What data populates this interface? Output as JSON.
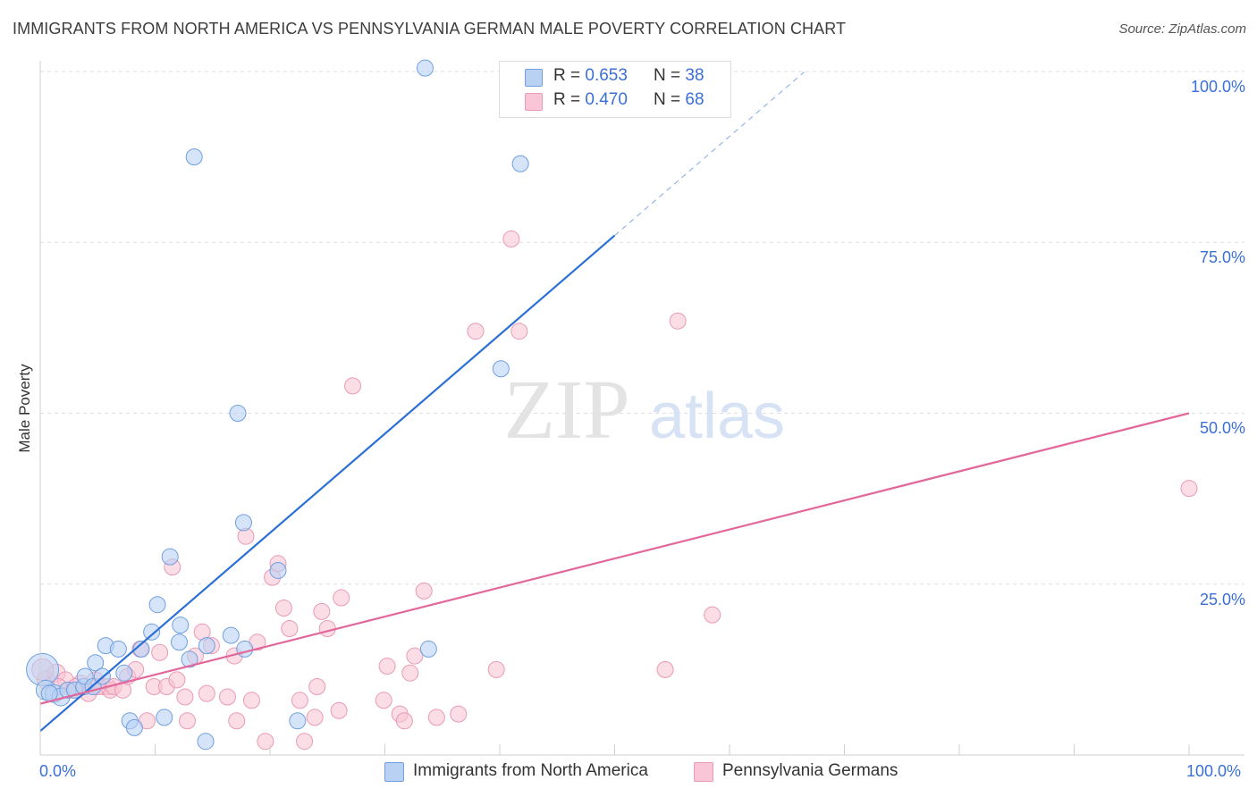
{
  "title": "IMMIGRANTS FROM NORTH AMERICA VS PENNSYLVANIA GERMAN MALE POVERTY CORRELATION CHART",
  "source": "Source: ZipAtlas.com",
  "watermark": {
    "zip": "ZIP",
    "atlas": "atlas"
  },
  "legend": {
    "series1": {
      "r_label": "R = ",
      "r_value": "0.653",
      "n_label": "N = ",
      "n_value": "38"
    },
    "series2": {
      "r_label": "R = ",
      "r_value": "0.470",
      "n_label": "N = ",
      "n_value": "68"
    }
  },
  "colors": {
    "blue_fill": "#b9d2f4",
    "blue_stroke": "#6f9fe0",
    "blue_line": "#2a6fd4",
    "pink_fill": "#f8c6d6",
    "pink_stroke": "#e99ab5",
    "pink_line": "#e2679a",
    "axis_label": "#3a6fd8",
    "grid": "#dddddd"
  },
  "chart_data": {
    "type": "scatter",
    "title": "IMMIGRANTS FROM NORTH AMERICA VS PENNSYLVANIA GERMAN MALE POVERTY CORRELATION CHART",
    "xlabel": "",
    "ylabel": "Male Poverty",
    "xlim": [
      0,
      100
    ],
    "ylim": [
      0,
      100
    ],
    "x_tick_labels": {
      "min": "0.0%",
      "max": "100.0%"
    },
    "y_tick_labels": [
      "25.0%",
      "50.0%",
      "75.0%",
      "100.0%"
    ],
    "y_ticks": [
      25,
      50,
      75,
      100
    ],
    "grid": true,
    "legend_position": "top-center",
    "series": [
      {
        "name": "Immigrants from North America",
        "color": "blue",
        "R": 0.653,
        "N": 38,
        "trend": {
          "x0": 0,
          "y0": 3.5,
          "x1": 50,
          "y1": 76,
          "dash_to_x": 66.5
        },
        "points": [
          [
            0.2,
            12.5,
            18
          ],
          [
            0.5,
            9.5,
            11
          ],
          [
            1.2,
            9,
            10
          ],
          [
            1.8,
            8.5,
            10
          ],
          [
            2.4,
            9.5,
            9
          ],
          [
            3.0,
            9.5,
            9
          ],
          [
            3.8,
            10,
            9
          ],
          [
            3.9,
            11.5,
            9
          ],
          [
            4.6,
            10,
            9
          ],
          [
            4.8,
            13.5,
            9
          ],
          [
            5.4,
            11.5,
            9
          ],
          [
            5.7,
            16,
            9
          ],
          [
            6.8,
            15.5,
            9
          ],
          [
            7.3,
            12,
            9
          ],
          [
            7.8,
            5,
            9
          ],
          [
            8.2,
            4,
            9
          ],
          [
            8.8,
            15.5,
            9
          ],
          [
            9.7,
            18,
            9
          ],
          [
            10.2,
            22,
            9
          ],
          [
            10.8,
            5.5,
            9
          ],
          [
            11.3,
            29,
            9
          ],
          [
            12.1,
            16.5,
            9
          ],
          [
            12.2,
            19,
            9
          ],
          [
            13.0,
            14,
            9
          ],
          [
            14.4,
            2,
            9
          ],
          [
            14.5,
            16,
            9
          ],
          [
            16.6,
            17.5,
            9
          ],
          [
            17.2,
            50,
            9
          ],
          [
            17.7,
            34,
            9
          ],
          [
            17.8,
            15.5,
            9
          ],
          [
            20.7,
            27,
            9
          ],
          [
            22.4,
            5,
            9
          ],
          [
            33.5,
            100.5,
            9
          ],
          [
            33.8,
            15.5,
            9
          ],
          [
            40.1,
            56.5,
            9
          ],
          [
            41.8,
            86.5,
            9
          ],
          [
            13.4,
            87.5,
            9
          ],
          [
            0.8,
            9,
            9
          ]
        ]
      },
      {
        "name": "Pennsylvania Germans",
        "color": "pink",
        "R": 0.47,
        "N": 68,
        "trend": {
          "x0": 0,
          "y0": 7.5,
          "x1": 100,
          "y1": 50
        },
        "points": [
          [
            0.5,
            11,
            10
          ],
          [
            1.4,
            12,
            10
          ],
          [
            2.2,
            11,
            9
          ],
          [
            2.8,
            9.5,
            9
          ],
          [
            3.5,
            10.5,
            9
          ],
          [
            4.2,
            9,
            9
          ],
          [
            4.8,
            11,
            9
          ],
          [
            5.5,
            10,
            9
          ],
          [
            5.9,
            10,
            9
          ],
          [
            6.1,
            9.5,
            9
          ],
          [
            6.4,
            10,
            9
          ],
          [
            7.2,
            9.5,
            9
          ],
          [
            7.6,
            11.5,
            9
          ],
          [
            8.3,
            12.5,
            9
          ],
          [
            8.7,
            15.5,
            9
          ],
          [
            9.3,
            5,
            9
          ],
          [
            9.9,
            10,
            9
          ],
          [
            10.4,
            15,
            9
          ],
          [
            11.0,
            10,
            9
          ],
          [
            11.5,
            27.5,
            9
          ],
          [
            11.9,
            11,
            9
          ],
          [
            12.6,
            8.5,
            9
          ],
          [
            12.8,
            5,
            9
          ],
          [
            13.5,
            14.5,
            9
          ],
          [
            14.1,
            18,
            9
          ],
          [
            14.5,
            9,
            9
          ],
          [
            14.9,
            16,
            9
          ],
          [
            16.3,
            8.5,
            9
          ],
          [
            16.9,
            14.5,
            9
          ],
          [
            17.1,
            5,
            9
          ],
          [
            17.9,
            32,
            9
          ],
          [
            18.4,
            8,
            9
          ],
          [
            18.9,
            16.5,
            9
          ],
          [
            19.6,
            2,
            9
          ],
          [
            20.2,
            26,
            9
          ],
          [
            20.7,
            28,
            9
          ],
          [
            21.2,
            21.5,
            9
          ],
          [
            21.7,
            18.5,
            9
          ],
          [
            22.6,
            8,
            9
          ],
          [
            23.0,
            2,
            9
          ],
          [
            23.9,
            5.5,
            9
          ],
          [
            24.1,
            10,
            9
          ],
          [
            24.5,
            21,
            9
          ],
          [
            25.0,
            18.5,
            9
          ],
          [
            26.0,
            6.5,
            9
          ],
          [
            26.2,
            23,
            9
          ],
          [
            27.2,
            54,
            9
          ],
          [
            29.9,
            8,
            9
          ],
          [
            30.2,
            13,
            9
          ],
          [
            31.3,
            6,
            9
          ],
          [
            31.7,
            5,
            9
          ],
          [
            32.2,
            12,
            9
          ],
          [
            32.6,
            14.5,
            9
          ],
          [
            33.4,
            24,
            9
          ],
          [
            34.5,
            5.5,
            9
          ],
          [
            36.4,
            6,
            9
          ],
          [
            37.9,
            62,
            9
          ],
          [
            39.7,
            12.5,
            9
          ],
          [
            41.0,
            75.5,
            9
          ],
          [
            41.7,
            62,
            9
          ],
          [
            54.4,
            12.5,
            9
          ],
          [
            55.5,
            63.5,
            9
          ],
          [
            58.5,
            20.5,
            9
          ],
          [
            100.0,
            39,
            9
          ],
          [
            0.2,
            12.5,
            12
          ],
          [
            1.6,
            10,
            9
          ],
          [
            3.1,
            10,
            9
          ],
          [
            5.0,
            10,
            9
          ]
        ]
      }
    ]
  },
  "bottom_legend": {
    "series1": "Immigrants from North America",
    "series2": "Pennsylvania Germans"
  }
}
